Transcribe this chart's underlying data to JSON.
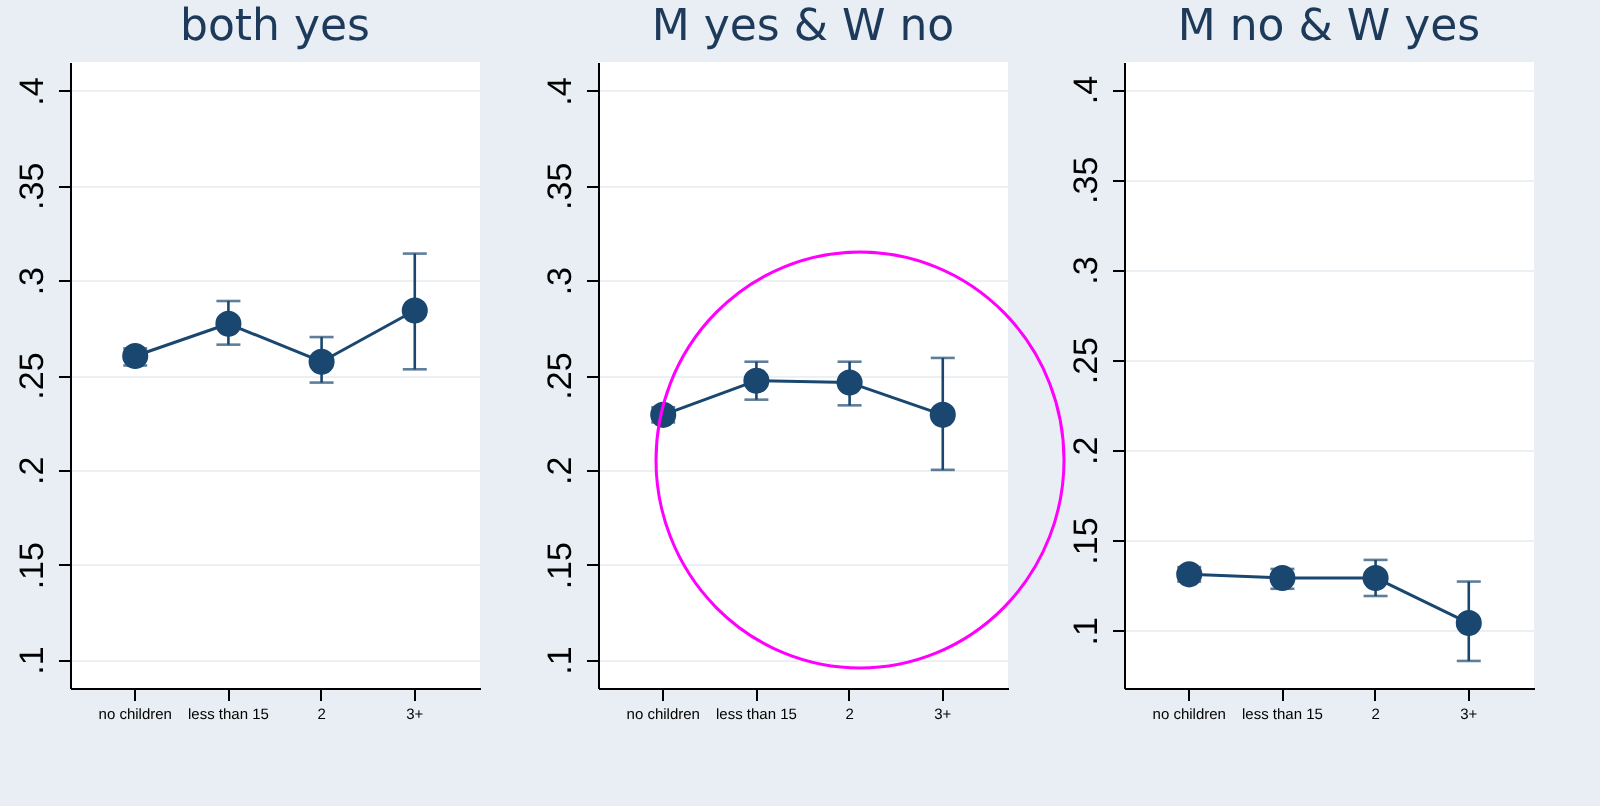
{
  "chart_data": [
    {
      "type": "line",
      "title": "both yes",
      "categories": [
        "no children",
        "less than 15",
        "2",
        "3+"
      ],
      "series": [
        {
          "color": "#1a476f",
          "values": [
            0.26,
            0.277,
            0.257,
            0.284
          ],
          "errors": [
            [
              0.255,
              0.264
            ],
            [
              0.266,
              0.289
            ],
            [
              0.246,
              0.27
            ],
            [
              0.253,
              0.314
            ]
          ]
        }
      ],
      "ylim": [
        0.085,
        0.415
      ],
      "yticks": [
        {
          "value": 0.1,
          "label": ".1"
        },
        {
          "value": 0.15,
          "label": ".15"
        },
        {
          "value": 0.2,
          "label": ".2"
        },
        {
          "value": 0.25,
          "label": ".25"
        },
        {
          "value": 0.3,
          "label": ".3"
        },
        {
          "value": 0.35,
          "label": ".35"
        },
        {
          "value": 0.4,
          "label": ".4"
        }
      ],
      "grid": "y",
      "marker": "circle"
    },
    {
      "type": "line",
      "title": "M yes & W no",
      "categories": [
        "no children",
        "less than 15",
        "2",
        "3+"
      ],
      "series": [
        {
          "color": "#1a476f",
          "values": [
            0.229,
            0.247,
            0.246,
            0.229
          ],
          "errors": [
            [
              0.225,
              0.233
            ],
            [
              0.237,
              0.257
            ],
            [
              0.234,
              0.257
            ],
            [
              0.2,
              0.259
            ]
          ]
        }
      ],
      "ylim": [
        0.085,
        0.415
      ],
      "yticks": [
        {
          "value": 0.1,
          "label": ".1"
        },
        {
          "value": 0.15,
          "label": ".15"
        },
        {
          "value": 0.2,
          "label": ".2"
        },
        {
          "value": 0.25,
          "label": ".25"
        },
        {
          "value": 0.3,
          "label": ".3"
        },
        {
          "value": 0.35,
          "label": ".35"
        },
        {
          "value": 0.4,
          "label": ".4"
        }
      ],
      "grid": "y",
      "marker": "circle"
    },
    {
      "type": "line",
      "title": "M no & W yes",
      "categories": [
        "no children",
        "less than 15",
        "2",
        "3+"
      ],
      "series": [
        {
          "color": "#1a476f",
          "values": [
            0.131,
            0.129,
            0.129,
            0.104
          ],
          "errors": [
            [
              0.127,
              0.135
            ],
            [
              0.123,
              0.134
            ],
            [
              0.119,
              0.139
            ],
            [
              0.083,
              0.127
            ]
          ]
        }
      ],
      "ylim": [
        0.068,
        0.415
      ],
      "yticks": [
        {
          "value": 0.1,
          "label": ".1"
        },
        {
          "value": 0.15,
          "label": ".15"
        },
        {
          "value": 0.2,
          "label": ".2"
        },
        {
          "value": 0.25,
          "label": ".25"
        },
        {
          "value": 0.3,
          "label": ".3"
        },
        {
          "value": 0.35,
          "label": ".35"
        },
        {
          "value": 0.4,
          "label": ".4"
        }
      ],
      "grid": "y",
      "marker": "circle"
    }
  ]
}
